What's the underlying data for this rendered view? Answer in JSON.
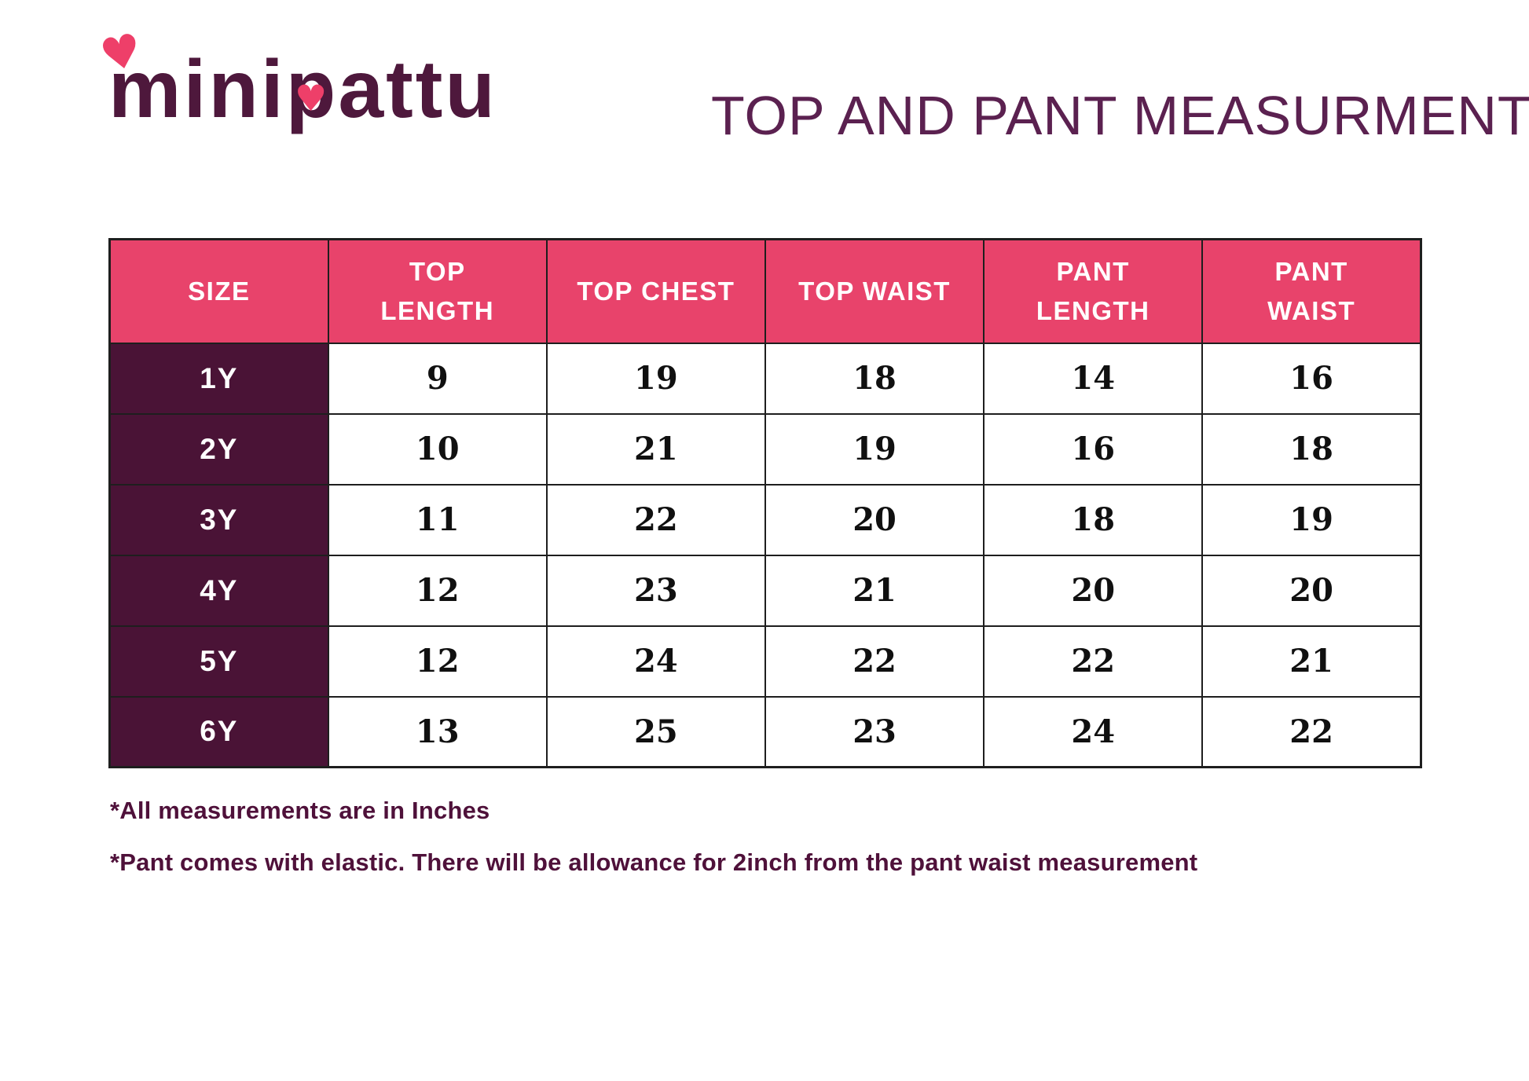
{
  "brand": {
    "logo_text": "minipattu",
    "heart_glyph": "♥"
  },
  "header": {
    "title": "TOP AND PANT MEASURMENT"
  },
  "table": {
    "columns": [
      "SIZE",
      "TOP\nLENGTH",
      "TOP CHEST",
      "TOP WAIST",
      "PANT\nLENGTH",
      "PANT\nWAIST"
    ],
    "rows": [
      {
        "size": "1Y",
        "values": [
          "9",
          "19",
          "18",
          "14",
          "16"
        ]
      },
      {
        "size": "2Y",
        "values": [
          "10",
          "21",
          "19",
          "16",
          "18"
        ]
      },
      {
        "size": "3Y",
        "values": [
          "11",
          "22",
          "20",
          "18",
          "19"
        ]
      },
      {
        "size": "4Y",
        "values": [
          "12",
          "23",
          "21",
          "20",
          "20"
        ]
      },
      {
        "size": "5Y",
        "values": [
          "12",
          "24",
          "22",
          "22",
          "21"
        ]
      },
      {
        "size": "6Y",
        "values": [
          "13",
          "25",
          "23",
          "24",
          "22"
        ]
      }
    ],
    "units": "Inches"
  },
  "footnotes": [
    "*All measurements are in Inches",
    "*Pant comes with elastic. There will be allowance for 2inch from the pant waist measurement"
  ],
  "colors": {
    "header_pink": "#e8436b",
    "size_column_purple": "#4a1336",
    "brand_purple": "#4e183c",
    "title_purple": "#5b2150",
    "heart_pink": "#ee3f69",
    "border_dark": "#1e1e1e",
    "value_text": "#101010"
  }
}
